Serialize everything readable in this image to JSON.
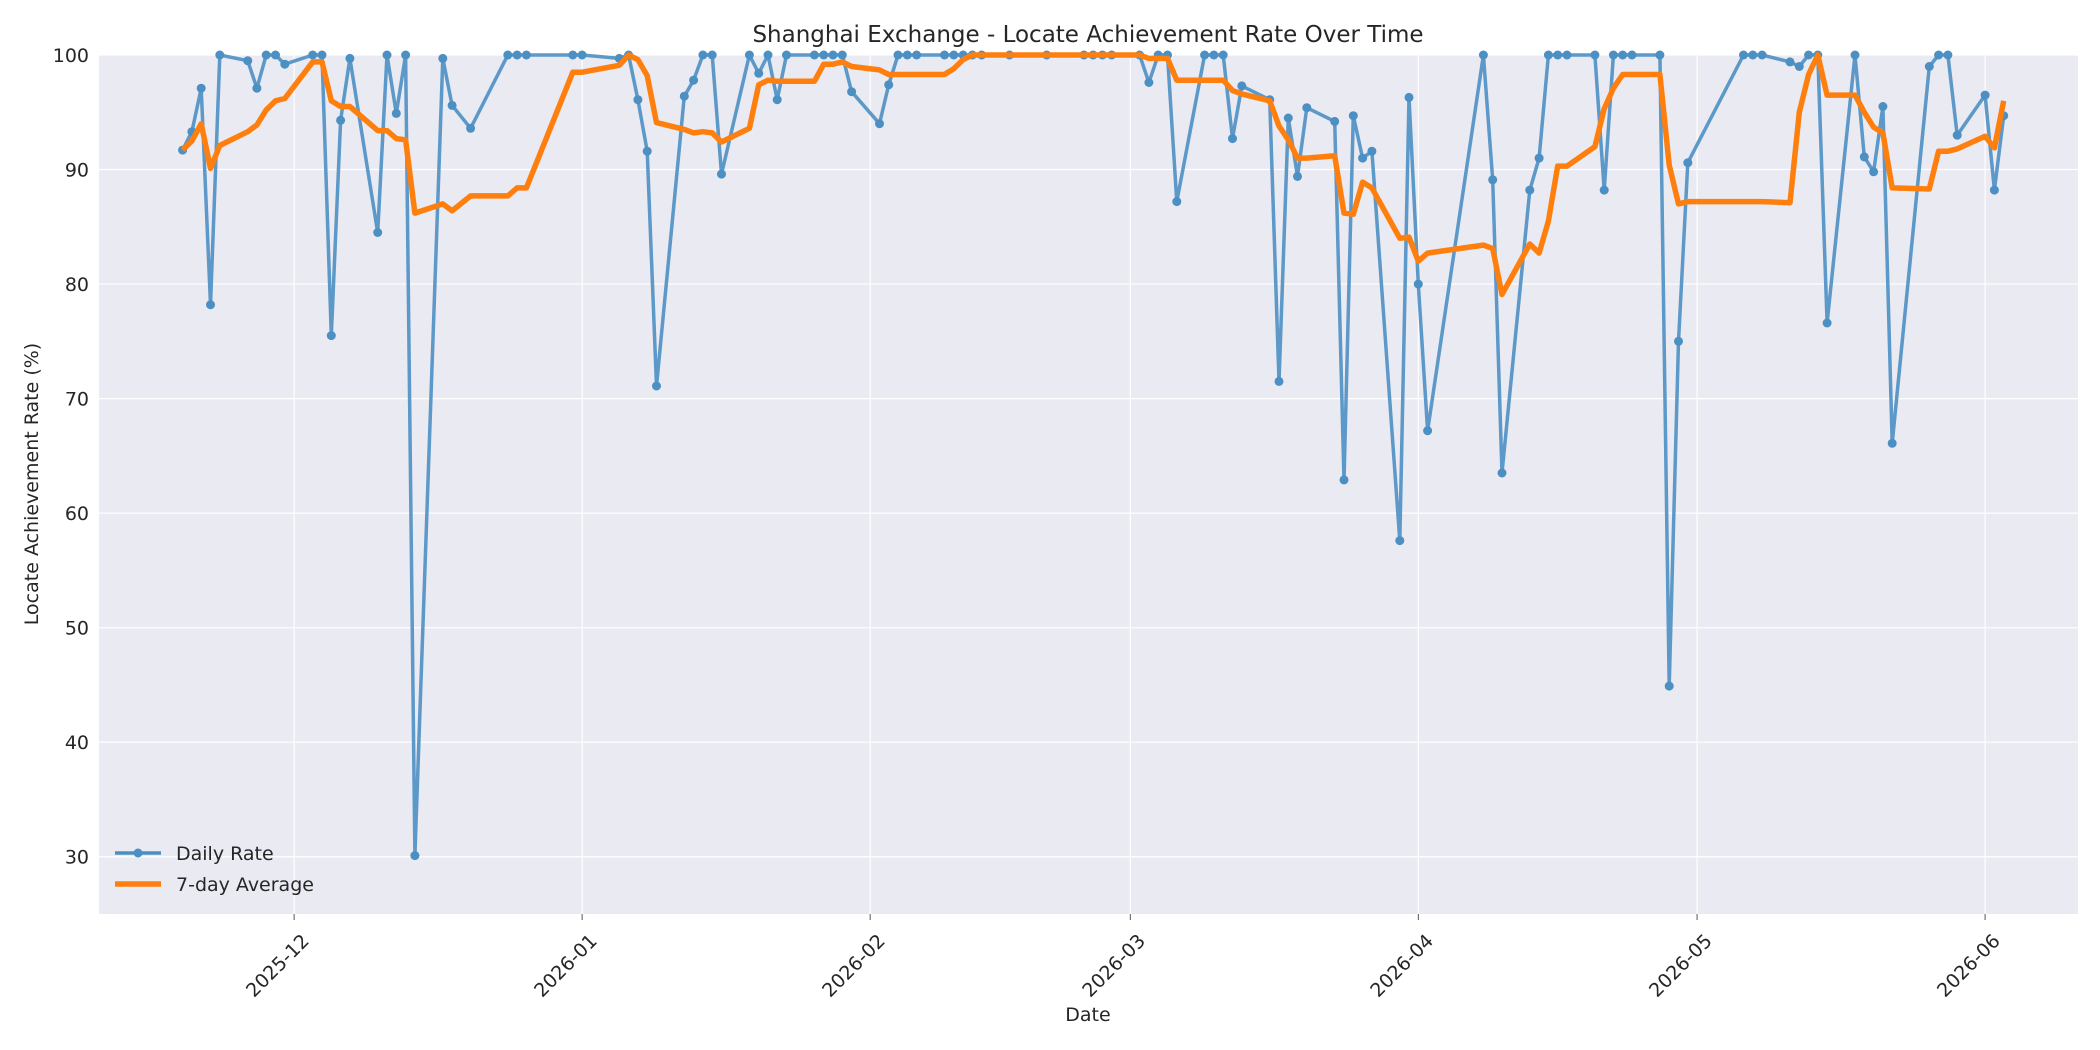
{
  "chart_data": {
    "type": "line",
    "title": "Shanghai Exchange - Locate Achievement Rate Over Time",
    "xlabel": "Date",
    "ylabel": "Locate Achievement Rate (%)",
    "ylim": [
      25,
      100
    ],
    "xlim": [
      "2025-11-10",
      "2026-06-11"
    ],
    "yticks": [
      30,
      40,
      50,
      60,
      70,
      80,
      90,
      100
    ],
    "xticks": [
      "2025-12",
      "2026-01",
      "2026-02",
      "2026-03",
      "2026-04",
      "2026-05",
      "2026-06"
    ],
    "grid": true,
    "legend_position": "lower-left",
    "colors": {
      "background": "#eaeaf2",
      "daily": "#4c8fc3",
      "average": "#ff7f0e"
    },
    "series": [
      {
        "name": "Daily Rate",
        "style": "line-with-markers",
        "points": [
          [
            "2025-11-19",
            91.7
          ],
          [
            "2025-11-20",
            93.3
          ],
          [
            "2025-11-21",
            97.1
          ],
          [
            "2025-11-22",
            78.2
          ],
          [
            "2025-11-23",
            100
          ],
          [
            "2025-11-26",
            99.5
          ],
          [
            "2025-11-27",
            97.1
          ],
          [
            "2025-11-28",
            100
          ],
          [
            "2025-11-29",
            100
          ],
          [
            "2025-11-30",
            99.2
          ],
          [
            "2025-12-03",
            100
          ],
          [
            "2025-12-04",
            100
          ],
          [
            "2025-12-05",
            75.5
          ],
          [
            "2025-12-06",
            94.3
          ],
          [
            "2025-12-07",
            99.7
          ],
          [
            "2025-12-10",
            84.5
          ],
          [
            "2025-12-11",
            100
          ],
          [
            "2025-12-12",
            94.9
          ],
          [
            "2025-12-13",
            100
          ],
          [
            "2025-12-14",
            30.1
          ],
          [
            "2025-12-17",
            99.7
          ],
          [
            "2025-12-18",
            95.6
          ],
          [
            "2025-12-20",
            93.6
          ],
          [
            "2025-12-24",
            100
          ],
          [
            "2025-12-25",
            100
          ],
          [
            "2025-12-26",
            100
          ],
          [
            "2025-12-31",
            100
          ],
          [
            "2026-01-01",
            100
          ],
          [
            "2026-01-05",
            99.7
          ],
          [
            "2026-01-06",
            100
          ],
          [
            "2026-01-07",
            96.1
          ],
          [
            "2026-01-08",
            91.6
          ],
          [
            "2026-01-09",
            71.1
          ],
          [
            "2026-01-12",
            96.4
          ],
          [
            "2026-01-13",
            97.8
          ],
          [
            "2026-01-14",
            100
          ],
          [
            "2026-01-15",
            100
          ],
          [
            "2026-01-16",
            89.6
          ],
          [
            "2026-01-19",
            100
          ],
          [
            "2026-01-20",
            98.4
          ],
          [
            "2026-01-21",
            100
          ],
          [
            "2026-01-22",
            96.1
          ],
          [
            "2026-01-23",
            100
          ],
          [
            "2026-01-26",
            100
          ],
          [
            "2026-01-27",
            100
          ],
          [
            "2026-01-28",
            100
          ],
          [
            "2026-01-29",
            100
          ],
          [
            "2026-01-30",
            96.8
          ],
          [
            "2026-02-02",
            94.0
          ],
          [
            "2026-02-03",
            97.4
          ],
          [
            "2026-02-04",
            100
          ],
          [
            "2026-02-05",
            100
          ],
          [
            "2026-02-06",
            100
          ],
          [
            "2026-02-09",
            100
          ],
          [
            "2026-02-10",
            100
          ],
          [
            "2026-02-11",
            100
          ],
          [
            "2026-02-12",
            100
          ],
          [
            "2026-02-13",
            100
          ],
          [
            "2026-02-16",
            100
          ],
          [
            "2026-02-20",
            100
          ],
          [
            "2026-02-24",
            100
          ],
          [
            "2026-02-25",
            100
          ],
          [
            "2026-02-26",
            100
          ],
          [
            "2026-02-27",
            100
          ],
          [
            "2026-03-02",
            100
          ],
          [
            "2026-03-03",
            97.6
          ],
          [
            "2026-03-04",
            100
          ],
          [
            "2026-03-05",
            100
          ],
          [
            "2026-03-06",
            87.2
          ],
          [
            "2026-03-09",
            100
          ],
          [
            "2026-03-10",
            100
          ],
          [
            "2026-03-11",
            100
          ],
          [
            "2026-03-12",
            92.7
          ],
          [
            "2026-03-13",
            97.3
          ],
          [
            "2026-03-16",
            96.1
          ],
          [
            "2026-03-17",
            71.5
          ],
          [
            "2026-03-18",
            94.5
          ],
          [
            "2026-03-19",
            89.4
          ],
          [
            "2026-03-20",
            95.4
          ],
          [
            "2026-03-23",
            94.2
          ],
          [
            "2026-03-24",
            62.9
          ],
          [
            "2026-03-25",
            94.7
          ],
          [
            "2026-03-26",
            91.0
          ],
          [
            "2026-03-27",
            91.6
          ],
          [
            "2026-03-30",
            57.6
          ],
          [
            "2026-03-31",
            96.3
          ],
          [
            "2026-04-01",
            80.0
          ],
          [
            "2026-04-02",
            67.2
          ],
          [
            "2026-04-08",
            100
          ],
          [
            "2026-04-09",
            89.1
          ],
          [
            "2026-04-10",
            63.5
          ],
          [
            "2026-04-13",
            88.2
          ],
          [
            "2026-04-14",
            91.0
          ],
          [
            "2026-04-15",
            100
          ],
          [
            "2026-04-16",
            100
          ],
          [
            "2026-04-17",
            100
          ],
          [
            "2026-04-20",
            100
          ],
          [
            "2026-04-21",
            88.2
          ],
          [
            "2026-04-22",
            100
          ],
          [
            "2026-04-23",
            100
          ],
          [
            "2026-04-24",
            100
          ],
          [
            "2026-04-27",
            100
          ],
          [
            "2026-04-28",
            44.9
          ],
          [
            "2026-04-29",
            75.0
          ],
          [
            "2026-04-30",
            90.6
          ],
          [
            "2026-05-06",
            100
          ],
          [
            "2026-05-07",
            100
          ],
          [
            "2026-05-08",
            100
          ],
          [
            "2026-05-11",
            99.4
          ],
          [
            "2026-05-12",
            99.0
          ],
          [
            "2026-05-13",
            100
          ],
          [
            "2026-05-14",
            100
          ],
          [
            "2026-05-15",
            76.6
          ],
          [
            "2026-05-18",
            100
          ],
          [
            "2026-05-19",
            91.1
          ],
          [
            "2026-05-20",
            89.8
          ],
          [
            "2026-05-21",
            95.5
          ],
          [
            "2026-05-22",
            66.1
          ],
          [
            "2026-05-26",
            99.0
          ],
          [
            "2026-05-27",
            100
          ],
          [
            "2026-05-28",
            100
          ],
          [
            "2026-05-29",
            93.0
          ],
          [
            "2026-06-01",
            96.5
          ],
          [
            "2026-06-02",
            88.2
          ],
          [
            "2026-06-03",
            94.7
          ]
        ]
      },
      {
        "name": "7-day Average",
        "style": "line",
        "points": [
          [
            "2025-11-19",
            91.7
          ],
          [
            "2025-11-20",
            92.5
          ],
          [
            "2025-11-21",
            94.0
          ],
          [
            "2025-11-22",
            90.1
          ],
          [
            "2025-11-23",
            92.1
          ],
          [
            "2025-11-26",
            93.3
          ],
          [
            "2025-11-27",
            93.9
          ],
          [
            "2025-11-28",
            95.2
          ],
          [
            "2025-11-29",
            96.0
          ],
          [
            "2025-11-30",
            96.2
          ],
          [
            "2025-12-03",
            99.4
          ],
          [
            "2025-12-04",
            99.4
          ],
          [
            "2025-12-05",
            96.0
          ],
          [
            "2025-12-06",
            95.5
          ],
          [
            "2025-12-07",
            95.5
          ],
          [
            "2025-12-10",
            93.4
          ],
          [
            "2025-12-11",
            93.4
          ],
          [
            "2025-12-12",
            92.7
          ],
          [
            "2025-12-13",
            92.6
          ],
          [
            "2025-12-14",
            86.2
          ],
          [
            "2025-12-17",
            87.0
          ],
          [
            "2025-12-18",
            86.4
          ],
          [
            "2025-12-20",
            87.7
          ],
          [
            "2025-12-24",
            87.7
          ],
          [
            "2025-12-25",
            88.4
          ],
          [
            "2025-12-26",
            88.4
          ],
          [
            "2025-12-31",
            98.5
          ],
          [
            "2026-01-01",
            98.5
          ],
          [
            "2026-01-05",
            99.1
          ],
          [
            "2026-01-06",
            100
          ],
          [
            "2026-01-07",
            99.6
          ],
          [
            "2026-01-08",
            98.2
          ],
          [
            "2026-01-09",
            94.1
          ],
          [
            "2026-01-12",
            93.5
          ],
          [
            "2026-01-13",
            93.2
          ],
          [
            "2026-01-14",
            93.3
          ],
          [
            "2026-01-15",
            93.2
          ],
          [
            "2026-01-16",
            92.4
          ],
          [
            "2026-01-19",
            93.6
          ],
          [
            "2026-01-20",
            97.4
          ],
          [
            "2026-01-21",
            97.8
          ],
          [
            "2026-01-22",
            97.7
          ],
          [
            "2026-01-23",
            97.7
          ],
          [
            "2026-01-26",
            97.7
          ],
          [
            "2026-01-27",
            99.2
          ],
          [
            "2026-01-28",
            99.2
          ],
          [
            "2026-01-29",
            99.4
          ],
          [
            "2026-01-30",
            99.0
          ],
          [
            "2026-02-02",
            98.7
          ],
          [
            "2026-02-03",
            98.3
          ],
          [
            "2026-02-04",
            98.3
          ],
          [
            "2026-02-05",
            98.3
          ],
          [
            "2026-02-06",
            98.3
          ],
          [
            "2026-02-09",
            98.3
          ],
          [
            "2026-02-10",
            98.8
          ],
          [
            "2026-02-11",
            99.6
          ],
          [
            "2026-02-12",
            100
          ],
          [
            "2026-02-13",
            100
          ],
          [
            "2026-02-16",
            100
          ],
          [
            "2026-02-20",
            100
          ],
          [
            "2026-02-24",
            100
          ],
          [
            "2026-02-25",
            100
          ],
          [
            "2026-02-26",
            100
          ],
          [
            "2026-02-27",
            100
          ],
          [
            "2026-03-02",
            100
          ],
          [
            "2026-03-03",
            99.7
          ],
          [
            "2026-03-04",
            99.7
          ],
          [
            "2026-03-05",
            99.7
          ],
          [
            "2026-03-06",
            97.8
          ],
          [
            "2026-03-09",
            97.8
          ],
          [
            "2026-03-10",
            97.8
          ],
          [
            "2026-03-11",
            97.8
          ],
          [
            "2026-03-12",
            96.9
          ],
          [
            "2026-03-13",
            96.6
          ],
          [
            "2026-03-16",
            96.0
          ],
          [
            "2026-03-17",
            93.8
          ],
          [
            "2026-03-18",
            92.6
          ],
          [
            "2026-03-19",
            91.0
          ],
          [
            "2026-03-20",
            91.0
          ],
          [
            "2026-03-23",
            91.2
          ],
          [
            "2026-03-24",
            86.2
          ],
          [
            "2026-03-25",
            86.1
          ],
          [
            "2026-03-26",
            88.9
          ],
          [
            "2026-03-27",
            88.4
          ],
          [
            "2026-03-30",
            84.0
          ],
          [
            "2026-03-31",
            84.1
          ],
          [
            "2026-04-01",
            82.0
          ],
          [
            "2026-04-02",
            82.7
          ],
          [
            "2026-04-08",
            83.4
          ],
          [
            "2026-04-09",
            83.1
          ],
          [
            "2026-04-10",
            79.1
          ],
          [
            "2026-04-13",
            83.5
          ],
          [
            "2026-04-14",
            82.7
          ],
          [
            "2026-04-15",
            85.5
          ],
          [
            "2026-04-16",
            90.3
          ],
          [
            "2026-04-17",
            90.3
          ],
          [
            "2026-04-20",
            92.0
          ],
          [
            "2026-04-21",
            95.3
          ],
          [
            "2026-04-22",
            97.1
          ],
          [
            "2026-04-23",
            98.3
          ],
          [
            "2026-04-24",
            98.3
          ],
          [
            "2026-04-27",
            98.3
          ],
          [
            "2026-04-28",
            90.4
          ],
          [
            "2026-04-29",
            87.0
          ],
          [
            "2026-04-30",
            87.2
          ],
          [
            "2026-05-06",
            87.2
          ],
          [
            "2026-05-07",
            87.2
          ],
          [
            "2026-05-08",
            87.2
          ],
          [
            "2026-05-11",
            87.1
          ],
          [
            "2026-05-12",
            95.0
          ],
          [
            "2026-05-13",
            98.3
          ],
          [
            "2026-05-14",
            100
          ],
          [
            "2026-05-15",
            96.5
          ],
          [
            "2026-05-18",
            96.5
          ],
          [
            "2026-05-19",
            95.0
          ],
          [
            "2026-05-20",
            93.7
          ],
          [
            "2026-05-21",
            93.2
          ],
          [
            "2026-05-22",
            88.4
          ],
          [
            "2026-05-26",
            88.3
          ],
          [
            "2026-05-27",
            91.6
          ],
          [
            "2026-05-28",
            91.6
          ],
          [
            "2026-05-29",
            91.8
          ],
          [
            "2026-06-01",
            92.9
          ],
          [
            "2026-06-02",
            91.9
          ],
          [
            "2026-06-03",
            96.0
          ]
        ]
      }
    ]
  }
}
